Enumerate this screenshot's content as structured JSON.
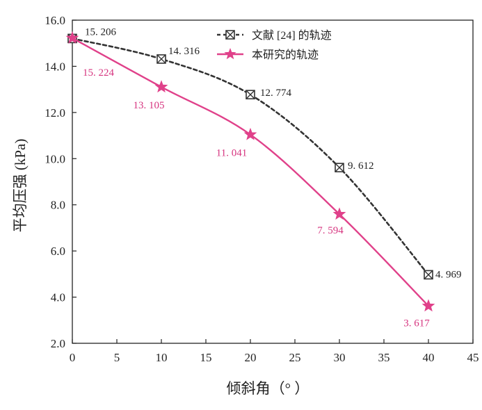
{
  "chart_data": {
    "type": "line",
    "title": "",
    "xlabel": "倾斜角（°  ）",
    "ylabel": "平均压强 (kPa)",
    "xlim": [
      0,
      45
    ],
    "ylim": [
      2.0,
      16.0
    ],
    "x_ticks": [
      "0",
      "5",
      "10",
      "15",
      "20",
      "25",
      "30",
      "35",
      "40",
      "45"
    ],
    "y_ticks": [
      "2.0",
      "4.0",
      "6.0",
      "8.0",
      "10.0",
      "12.0",
      "14.0",
      "16.0"
    ],
    "grid": false,
    "legend_position": "top-right",
    "series": [
      {
        "name": "文献 [24] 的轨迹",
        "marker": "boxed-x",
        "line_style": "dotted",
        "color": "#333333",
        "label_color": "#222222",
        "x": [
          0,
          10,
          20,
          30,
          40
        ],
        "y": [
          15.206,
          14.316,
          12.774,
          9.612,
          4.969
        ],
        "labels": [
          "15. 206",
          "14. 316",
          "12. 774",
          "9. 612",
          "4. 969"
        ]
      },
      {
        "name": "本研究的轨迹",
        "marker": "star",
        "line_style": "solid",
        "color": "#e0418a",
        "label_color": "#d6347f",
        "x": [
          0,
          10,
          20,
          30,
          40
        ],
        "y": [
          15.224,
          13.105,
          11.041,
          7.594,
          3.617
        ],
        "labels": [
          "15. 224",
          "13. 105",
          "11. 041",
          "7. 594",
          "3. 617"
        ]
      }
    ]
  }
}
